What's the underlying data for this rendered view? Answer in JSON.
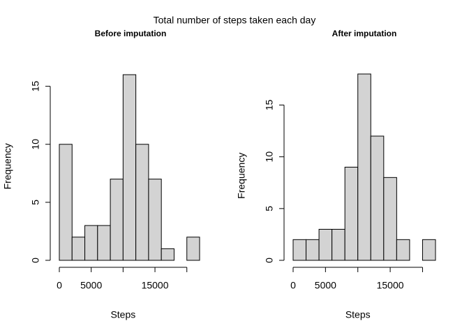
{
  "title": "Total number of steps taken each day",
  "chart_data": [
    {
      "type": "histogram",
      "title": "Before imputation",
      "xlabel": "Steps",
      "ylabel": "Frequency",
      "bins": [
        0,
        2000,
        4000,
        6000,
        8000,
        10000,
        12000,
        14000,
        16000,
        18000,
        20000,
        22000
      ],
      "counts": [
        10,
        2,
        3,
        3,
        7,
        16,
        10,
        7,
        1,
        0,
        2
      ],
      "color": "#d3d3d3",
      "xlim": [
        0,
        22000
      ],
      "ylim": [
        0,
        16
      ],
      "xticks": [
        0,
        5000,
        {
          "value": 10000,
          "label": null
        },
        15000,
        {
          "value": 20000,
          "label": null
        }
      ],
      "yticks": [
        0,
        5,
        10,
        15
      ]
    },
    {
      "type": "histogram",
      "title": "After imputation",
      "xlabel": "Steps",
      "ylabel": "Frequency",
      "bins": [
        0,
        2000,
        4000,
        6000,
        8000,
        10000,
        12000,
        14000,
        16000,
        18000,
        20000,
        22000
      ],
      "counts": [
        2,
        2,
        3,
        3,
        9,
        18,
        12,
        8,
        2,
        0,
        2
      ],
      "color": "#d3d3d3",
      "xlim": [
        0,
        22000
      ],
      "ylim": [
        0,
        18
      ],
      "xticks": [
        0,
        5000,
        {
          "value": 10000,
          "label": null
        },
        15000,
        {
          "value": 20000,
          "label": null
        }
      ],
      "yticks": [
        0,
        5,
        10,
        15
      ]
    }
  ]
}
